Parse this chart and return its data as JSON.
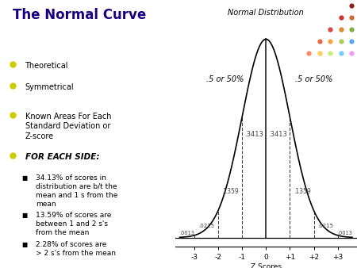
{
  "title": "The Normal Curve",
  "bg_color": "#ffffff",
  "title_color": "#1a0080",
  "bullet_color": "#cccc00",
  "bullet_items": [
    "Theoretical",
    "Symmetrical",
    "Known Areas For Each\nStandard Deviation or\nZ-score"
  ],
  "bold_bullet": "FOR EACH SIDE:",
  "sub_bullets": [
    "34.13% of scores in\ndistribution are b/t the\nmean and 1 s from the\nmean",
    "13.59% of scores are\nbetween 1 and 2 s's\nfrom the mean",
    "2.28% of scores are\n> 2 s's from the mean"
  ],
  "curve_title": "Normal Distribution",
  "left_label": ".5 or 50%",
  "right_label": ".5 or 50%",
  "z_scores": [
    "-3",
    "-2",
    "-1",
    "0",
    "+1",
    "+2",
    "+3"
  ],
  "z_label": "Z Scores",
  "dot_colors": [
    [
      "#8B0000",
      "#8B4513",
      "#556B2F",
      "#00008B",
      "#4B0082"
    ],
    [
      "#DC143C",
      "#D2691E",
      "#6B8E23",
      "#0000CD",
      "#8B008B"
    ],
    [
      "#FF6347",
      "#FF8C00",
      "#9ACD32",
      "#4169E1",
      "#9400D3"
    ],
    [
      "#FF4500",
      "#FFA500",
      "#ADFF2F",
      "#1E90FF",
      "#DA70D6"
    ],
    [
      "#FF0000",
      "#FFD700",
      "#7FFF00",
      "#00BFFF",
      "#EE82EE"
    ]
  ]
}
